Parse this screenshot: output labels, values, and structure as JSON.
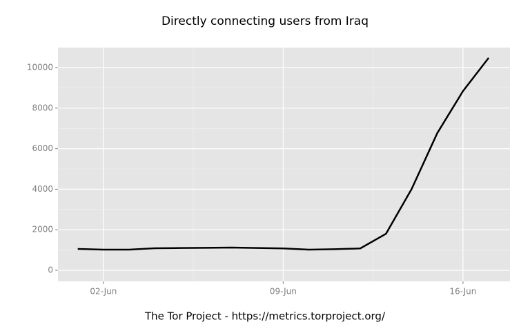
{
  "chart_data": {
    "type": "line",
    "title": "Directly connecting users from Iraq",
    "caption": "The Tor Project - https://metrics.torproject.org/",
    "x": [
      1,
      2,
      3,
      4,
      5,
      6,
      7,
      8,
      9,
      10,
      11,
      12,
      13,
      14,
      15,
      16,
      17
    ],
    "series": [
      {
        "color": "#000000",
        "values": [
          1054,
          1020,
          1020,
          1088,
          1100,
          1110,
          1122,
          1100,
          1080,
          1020,
          1040,
          1080,
          1800,
          4010,
          6770,
          8840,
          10480
        ]
      }
    ],
    "xlim": [
      0.23,
      17.83
    ],
    "xticks": [
      {
        "value": 2,
        "label": "02-Jun"
      },
      {
        "value": 9,
        "label": "09-Jun"
      },
      {
        "value": 16,
        "label": "16-Jun"
      }
    ],
    "ylim": [
      -544,
      10986
    ],
    "yticks": [
      0,
      2000,
      4000,
      6000,
      8000,
      10000
    ],
    "grid": true
  }
}
